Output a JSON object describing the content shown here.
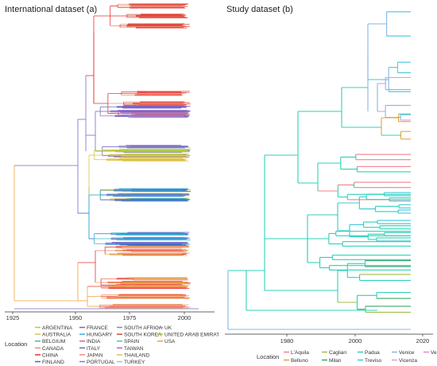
{
  "panels": [
    {
      "title": "International dataset (a)",
      "axis_ticks": [
        "1925",
        "1950",
        "1975",
        "2000"
      ],
      "legend_title": "Location",
      "legend": [
        {
          "label": "ARGENTINA",
          "color": "#a6d33a"
        },
        {
          "label": "AUSTRALIA",
          "color": "#d9c24a"
        },
        {
          "label": "BELGIUM",
          "color": "#2ec4a6"
        },
        {
          "label": "CANADA",
          "color": "#f0906b"
        },
        {
          "label": "CHINA",
          "color": "#e8312f"
        },
        {
          "label": "FINLAND",
          "color": "#2a6bd6"
        },
        {
          "label": "FRANCE",
          "color": "#7a62c9"
        },
        {
          "label": "HUNGARY",
          "color": "#38b3d6"
        },
        {
          "label": "INDIA",
          "color": "#d6609c"
        },
        {
          "label": "ITALY",
          "color": "#7b67c4"
        },
        {
          "label": "JAPAN",
          "color": "#f08a78"
        },
        {
          "label": "PORTUGAL",
          "color": "#6b86c4"
        },
        {
          "label": "SOUTH AFRICA",
          "color": "#8a8a8a"
        },
        {
          "label": "SOUTH KOREA",
          "color": "#d4472f"
        },
        {
          "label": "SPAIN",
          "color": "#3ecf9c"
        },
        {
          "label": "TAIWAN",
          "color": "#c05ec2"
        },
        {
          "label": "THAILAND",
          "color": "#e0c24c"
        },
        {
          "label": "TURKEY",
          "color": "#9ac1e0"
        },
        {
          "label": "UK",
          "color": "#b084c6"
        },
        {
          "label": "UNITED ARAB EMIRATES",
          "color": "#a0cc52"
        },
        {
          "label": "USA",
          "color": "#f0a23a"
        }
      ]
    },
    {
      "title": "Study dataset (b)",
      "axis_ticks": [
        "1980",
        "2000",
        "2020"
      ],
      "legend_title": "Location",
      "legend": [
        {
          "label": "L'Aquila",
          "color": "#f0808a"
        },
        {
          "label": "Belluno",
          "color": "#e6a23c"
        },
        {
          "label": "Cagliari",
          "color": "#a8b846"
        },
        {
          "label": "Milan",
          "color": "#3aa66a"
        },
        {
          "label": "Padua",
          "color": "#2fd1b8"
        },
        {
          "label": "Treviso",
          "color": "#3cc8d8"
        },
        {
          "label": "Venice",
          "color": "#8ab4e8"
        },
        {
          "label": "Vicenza",
          "color": "#e69ad2"
        },
        {
          "label": "Verona",
          "color": "#e58ad0"
        }
      ]
    }
  ]
}
